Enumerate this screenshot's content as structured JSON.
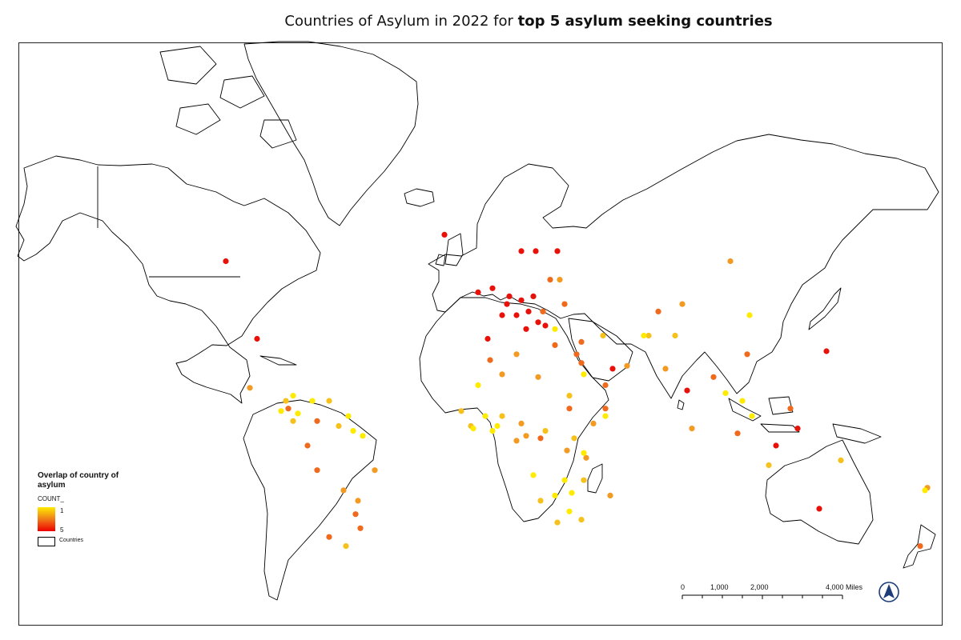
{
  "map": {
    "title_prefix": "Countries of Asylum in 2022 for ",
    "title_bold": "top 5 asylum seeking countries",
    "legend": {
      "heading": "Overlap of country of asylum",
      "field": "COUNT_",
      "ramp_max_label": "1",
      "ramp_min_label": "5",
      "countries_label": "Countries",
      "colors": {
        "count_1": "#ffeb00",
        "count_2": "#f6c11a",
        "count_3": "#f39a22",
        "count_4": "#ef6a1d",
        "count_5": "#e8110a"
      }
    },
    "scale": {
      "labels": [
        "0",
        "1,000",
        "2,000",
        "4,000 Miles"
      ]
    },
    "north_arrow": "north-arrow-icon",
    "points": [
      {
        "lon": -113,
        "lat": 60,
        "count": 5
      },
      {
        "lon": -100,
        "lat": 40,
        "count": 5
      },
      {
        "lon": -22,
        "lat": 65,
        "count": 5
      },
      {
        "lon": 10,
        "lat": 62,
        "count": 5
      },
      {
        "lon": 25,
        "lat": 62,
        "count": 5
      },
      {
        "lon": 16,
        "lat": 62,
        "count": 5
      },
      {
        "lon": 5,
        "lat": 52,
        "count": 5
      },
      {
        "lon": 10,
        "lat": 51,
        "count": 5
      },
      {
        "lon": 2,
        "lat": 47,
        "count": 5
      },
      {
        "lon": -4,
        "lat": 40,
        "count": 5
      },
      {
        "lon": 4,
        "lat": 50,
        "count": 5
      },
      {
        "lon": 13,
        "lat": 48,
        "count": 5
      },
      {
        "lon": 20,
        "lat": 44,
        "count": 5
      },
      {
        "lon": 12,
        "lat": 43,
        "count": 5
      },
      {
        "lon": 79,
        "lat": 22,
        "count": 5
      },
      {
        "lon": 134,
        "lat": -25,
        "count": 5
      },
      {
        "lon": 116,
        "lat": 0,
        "count": 5
      },
      {
        "lon": -2,
        "lat": 54,
        "count": 5
      },
      {
        "lon": -8,
        "lat": 53,
        "count": 5
      },
      {
        "lon": 15,
        "lat": 52,
        "count": 5
      },
      {
        "lon": 17,
        "lat": 45,
        "count": 5
      },
      {
        "lon": 8,
        "lat": 47,
        "count": 5
      },
      {
        "lon": 48,
        "lat": 30,
        "count": 5
      },
      {
        "lon": 125,
        "lat": 7,
        "count": 5
      },
      {
        "lon": 137,
        "lat": 36,
        "count": 5
      },
      {
        "lon": -87,
        "lat": 15,
        "count": 4
      },
      {
        "lon": -75,
        "lat": 10,
        "count": 4
      },
      {
        "lon": -79,
        "lat": 0,
        "count": 4
      },
      {
        "lon": -75,
        "lat": -10,
        "count": 4
      },
      {
        "lon": -70,
        "lat": -35,
        "count": 4
      },
      {
        "lon": -57,
        "lat": -32,
        "count": 4
      },
      {
        "lon": 24,
        "lat": 38,
        "count": 4
      },
      {
        "lon": 35,
        "lat": 39,
        "count": 4
      },
      {
        "lon": 35,
        "lat": 32,
        "count": 4
      },
      {
        "lon": 45,
        "lat": 24,
        "count": 4
      },
      {
        "lon": 30,
        "lat": 15,
        "count": 4
      },
      {
        "lon": 18,
        "lat": 3,
        "count": 4
      },
      {
        "lon": 104,
        "lat": 35,
        "count": 4
      },
      {
        "lon": 22,
        "lat": 56,
        "count": 4
      },
      {
        "lon": 28,
        "lat": 50,
        "count": 4
      },
      {
        "lon": 19,
        "lat": 48,
        "count": 4
      },
      {
        "lon": 33,
        "lat": 35,
        "count": 4
      },
      {
        "lon": 67,
        "lat": 48,
        "count": 4
      },
      {
        "lon": 90,
        "lat": 27,
        "count": 4
      },
      {
        "lon": 100,
        "lat": 5,
        "count": 4
      },
      {
        "lon": 122,
        "lat": 15,
        "count": 4
      },
      {
        "lon": 176,
        "lat": -38,
        "count": 4
      },
      {
        "lon": -59,
        "lat": -27,
        "count": 4
      },
      {
        "lon": -3,
        "lat": 33,
        "count": 4
      },
      {
        "lon": 45,
        "lat": 15,
        "count": 4
      },
      {
        "lon": -103,
        "lat": 23,
        "count": 3
      },
      {
        "lon": -64,
        "lat": -18,
        "count": 3
      },
      {
        "lon": -51,
        "lat": -10,
        "count": 3
      },
      {
        "lon": -58,
        "lat": -22,
        "count": 3
      },
      {
        "lon": 8,
        "lat": 35,
        "count": 3
      },
      {
        "lon": 2,
        "lat": 28,
        "count": 3
      },
      {
        "lon": 17,
        "lat": 27,
        "count": 3
      },
      {
        "lon": 10,
        "lat": 9,
        "count": 3
      },
      {
        "lon": 12,
        "lat": 4,
        "count": 3
      },
      {
        "lon": 29,
        "lat": -2,
        "count": 3
      },
      {
        "lon": 37,
        "lat": -5,
        "count": 3
      },
      {
        "lon": 47,
        "lat": -20,
        "count": 3
      },
      {
        "lon": 77,
        "lat": 50,
        "count": 3
      },
      {
        "lon": 97,
        "lat": 60,
        "count": 3
      },
      {
        "lon": 54,
        "lat": 31,
        "count": 3
      },
      {
        "lon": 70,
        "lat": 30,
        "count": 3
      },
      {
        "lon": 81,
        "lat": 7,
        "count": 3
      },
      {
        "lon": 179,
        "lat": -17,
        "count": 3
      },
      {
        "lon": 40,
        "lat": 9,
        "count": 3
      },
      {
        "lon": 26,
        "lat": 56,
        "count": 3
      },
      {
        "lon": 8,
        "lat": 2,
        "count": 3
      },
      {
        "lon": -88,
        "lat": 18,
        "count": 2
      },
      {
        "lon": -70,
        "lat": 18,
        "count": 2
      },
      {
        "lon": -66,
        "lat": 8,
        "count": 2
      },
      {
        "lon": -85,
        "lat": 10,
        "count": 2
      },
      {
        "lon": 36,
        "lat": -14,
        "count": 2
      },
      {
        "lon": 18,
        "lat": -22,
        "count": 2
      },
      {
        "lon": 25,
        "lat": -30,
        "count": 2
      },
      {
        "lon": 30,
        "lat": 20,
        "count": 2
      },
      {
        "lon": 44,
        "lat": 41,
        "count": 2
      },
      {
        "lon": 63,
        "lat": 41,
        "count": 2
      },
      {
        "lon": 113,
        "lat": -8,
        "count": 2
      },
      {
        "lon": 143,
        "lat": -6,
        "count": 2
      },
      {
        "lon": 74,
        "lat": 41,
        "count": 2
      },
      {
        "lon": 2,
        "lat": 12,
        "count": 2
      },
      {
        "lon": -11,
        "lat": 8,
        "count": 2
      },
      {
        "lon": -15,
        "lat": 14,
        "count": 2
      },
      {
        "lon": -63,
        "lat": -38,
        "count": 2
      },
      {
        "lon": 32,
        "lat": 3,
        "count": 2
      },
      {
        "lon": 20,
        "lat": 6,
        "count": 2
      },
      {
        "lon": 35,
        "lat": -29,
        "count": 2
      },
      {
        "lon": -85,
        "lat": 20,
        "count": 1
      },
      {
        "lon": -77,
        "lat": 18,
        "count": 1
      },
      {
        "lon": -62,
        "lat": 12,
        "count": 1
      },
      {
        "lon": -60,
        "lat": 6,
        "count": 1
      },
      {
        "lon": -90,
        "lat": 14,
        "count": 1
      },
      {
        "lon": -83,
        "lat": 13,
        "count": 1
      },
      {
        "lon": -56,
        "lat": 4,
        "count": 1
      },
      {
        "lon": -8,
        "lat": 24,
        "count": 1
      },
      {
        "lon": -5,
        "lat": 12,
        "count": 1
      },
      {
        "lon": 0,
        "lat": 8,
        "count": 1
      },
      {
        "lon": -2,
        "lat": 6,
        "count": 1
      },
      {
        "lon": 15,
        "lat": -12,
        "count": 1
      },
      {
        "lon": 24,
        "lat": -20,
        "count": 1
      },
      {
        "lon": 31,
        "lat": -19,
        "count": 1
      },
      {
        "lon": 28,
        "lat": -14,
        "count": 1
      },
      {
        "lon": 105,
        "lat": 47,
        "count": 1
      },
      {
        "lon": 102,
        "lat": 18,
        "count": 1
      },
      {
        "lon": 106,
        "lat": 12,
        "count": 1
      },
      {
        "lon": 178,
        "lat": -18,
        "count": 1
      },
      {
        "lon": 30,
        "lat": -26,
        "count": 1
      },
      {
        "lon": 45,
        "lat": 12,
        "count": 1
      },
      {
        "lon": 61,
        "lat": 41,
        "count": 1
      },
      {
        "lon": -10,
        "lat": 7,
        "count": 1
      },
      {
        "lon": 24,
        "lat": 43,
        "count": 1
      },
      {
        "lon": 36,
        "lat": 28,
        "count": 1
      },
      {
        "lon": 95,
        "lat": 21,
        "count": 1
      },
      {
        "lon": 36,
        "lat": -3,
        "count": 1
      }
    ]
  }
}
